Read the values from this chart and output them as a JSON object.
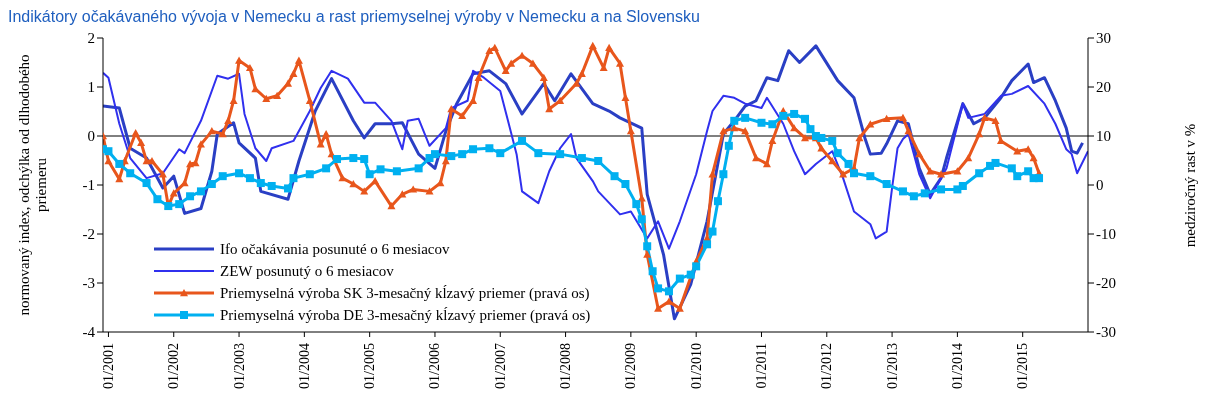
{
  "chart_data": {
    "type": "line",
    "title": "Indikátory očakávaného vývoja v Nemecku a rast priemyselnej výroby v Nemecku a na Slovensku",
    "ylabel": "normovaný index, odchýlka od dlhodobého priemeru",
    "y2label": "medziročný rast v %",
    "xlim": [
      "2000-12",
      "2016-01"
    ],
    "xticks": [
      {
        "value": "2001-01",
        "label": "01/2001"
      },
      {
        "value": "2002-01",
        "label": "01/2002"
      },
      {
        "value": "2003-01",
        "label": "01/2003"
      },
      {
        "value": "2004-01",
        "label": "01/2004"
      },
      {
        "value": "2005-01",
        "label": "01/2005"
      },
      {
        "value": "2006-01",
        "label": "01/2006"
      },
      {
        "value": "2007-01",
        "label": "01/2007"
      },
      {
        "value": "2008-01",
        "label": "01/2008"
      },
      {
        "value": "2009-01",
        "label": "01/2009"
      },
      {
        "value": "2010-01",
        "label": "01/2010"
      },
      {
        "value": "2011-01",
        "label": "01/2011"
      },
      {
        "value": "2012-01",
        "label": "01/2012"
      },
      {
        "value": "2013-01",
        "label": "01/2013"
      },
      {
        "value": "2014-01",
        "label": "01/2014"
      },
      {
        "value": "2015-01",
        "label": "01/2015"
      }
    ],
    "ylim": [
      -4,
      2
    ],
    "yticks": [
      -4,
      -3,
      -2,
      -1,
      0,
      1,
      2
    ],
    "y2lim": [
      -30,
      30
    ],
    "y2ticks": [
      -30,
      -20,
      -10,
      0,
      10,
      20,
      30
    ],
    "grid": false,
    "legend": "bottom left",
    "ref_lines": [
      {
        "axis": "y",
        "value": 0,
        "color": "#000000"
      }
    ],
    "series": [
      {
        "name": "Ifo očakávania posunuté o 6 mesiacov",
        "color": "#2a3fc4",
        "line_style": "solid",
        "marker": "none",
        "x": [
          "2000-12",
          "2001-03",
          "2001-05",
          "2001-08",
          "2001-11",
          "2002-01",
          "2002-03",
          "2002-06",
          "2002-08",
          "2002-09",
          "2002-12",
          "2003-01",
          "2003-04",
          "2003-05",
          "2003-10",
          "2003-12",
          "2004-03",
          "2004-06",
          "2004-10",
          "2004-12",
          "2005-02",
          "2005-05",
          "2005-07",
          "2005-10",
          "2006-01",
          "2006-03",
          "2006-05",
          "2006-08",
          "2006-11",
          "2007-02",
          "2007-05",
          "2007-09",
          "2007-11",
          "2008-02",
          "2008-06",
          "2008-09",
          "2008-11",
          "2009-03",
          "2009-04",
          "2009-07",
          "2009-09",
          "2009-12",
          "2010-03",
          "2010-06",
          "2010-08",
          "2010-10",
          "2010-12",
          "2011-02",
          "2011-04",
          "2011-06",
          "2011-08",
          "2011-11",
          "2012-03",
          "2012-06",
          "2012-08",
          "2012-09",
          "2012-11",
          "2012-12",
          "2013-02",
          "2013-04",
          "2013-06",
          "2013-08",
          "2013-10",
          "2013-11",
          "2014-02",
          "2014-04",
          "2014-06",
          "2014-09",
          "2014-11",
          "2015-02",
          "2015-03",
          "2015-05",
          "2015-07",
          "2015-09",
          "2015-10",
          "2015-11",
          "2015-12"
        ],
        "values": [
          0.61,
          0.57,
          -0.25,
          -0.45,
          -1.06,
          -0.82,
          -1.58,
          -1.48,
          -0.72,
          0.04,
          0.27,
          -0.14,
          -0.45,
          -1.13,
          -1.29,
          -0.51,
          0.51,
          1.17,
          0.31,
          -0.04,
          0.25,
          0.25,
          0.27,
          -0.37,
          -0.66,
          0.1,
          0.66,
          1.27,
          1.33,
          1.07,
          0.45,
          1.07,
          0.72,
          1.27,
          0.66,
          0.51,
          0.37,
          0.16,
          -1.19,
          -2.42,
          -3.73,
          -3.03,
          -1.74,
          0.04,
          0.31,
          0.61,
          0.72,
          1.19,
          1.13,
          1.74,
          1.5,
          1.84,
          1.13,
          0.78,
          -0.04,
          -0.37,
          -0.35,
          -0.16,
          0.31,
          0.25,
          -0.66,
          -1.19,
          -0.86,
          -0.45,
          0.66,
          0.25,
          0.37,
          0.78,
          1.13,
          1.47,
          1.09,
          1.19,
          0.72,
          0.16,
          -0.31,
          -0.35,
          -0.14
        ]
      },
      {
        "name": "ZEW posunutý o 6 mesiacov",
        "color": "#3030ee",
        "line_style": "solid",
        "marker": "none",
        "x": [
          "2000-12",
          "2001-01",
          "2001-03",
          "2001-05",
          "2001-08",
          "2001-11",
          "2002-02",
          "2002-03",
          "2002-06",
          "2002-09",
          "2002-11",
          "2003-01",
          "2003-02",
          "2003-04",
          "2003-06",
          "2003-07",
          "2003-11",
          "2004-02",
          "2004-04",
          "2004-06",
          "2004-09",
          "2004-12",
          "2005-02",
          "2005-05",
          "2005-07",
          "2005-08",
          "2005-10",
          "2005-12",
          "2006-03",
          "2006-04",
          "2006-07",
          "2006-08",
          "2006-10",
          "2007-01",
          "2007-04",
          "2007-05",
          "2007-08",
          "2007-10",
          "2007-12",
          "2008-02",
          "2008-03",
          "2008-06",
          "2008-07",
          "2008-11",
          "2009-01",
          "2009-04",
          "2009-06",
          "2009-08",
          "2009-10",
          "2010-01",
          "2010-03",
          "2010-04",
          "2010-06",
          "2010-08",
          "2010-10",
          "2011-01",
          "2011-02",
          "2011-05",
          "2011-07",
          "2011-09",
          "2011-11",
          "2012-02",
          "2012-04",
          "2012-06",
          "2012-09",
          "2012-10",
          "2012-12",
          "2013-01",
          "2013-02",
          "2013-03",
          "2013-04",
          "2013-06",
          "2013-08",
          "2013-10",
          "2013-11",
          "2014-02",
          "2014-03",
          "2014-06",
          "2014-09",
          "2014-11",
          "2015-02",
          "2015-05",
          "2015-07",
          "2015-09",
          "2015-10",
          "2015-11",
          "2016-01"
        ],
        "values": [
          1.29,
          1.19,
          0.25,
          -0.45,
          -0.86,
          -0.76,
          -0.27,
          -0.35,
          0.31,
          1.23,
          1.17,
          1.27,
          0.45,
          -0.25,
          -0.51,
          -0.25,
          -0.1,
          0.51,
          0.98,
          1.33,
          1.17,
          0.68,
          0.68,
          0.31,
          -0.27,
          0.31,
          0.35,
          -0.2,
          0.16,
          0.57,
          0.72,
          1.33,
          1.19,
          0.92,
          -0.37,
          -1.13,
          -1.37,
          -0.72,
          -0.25,
          0.04,
          -0.45,
          -0.92,
          -1.13,
          -1.6,
          -1.54,
          -2.09,
          -1.74,
          -2.3,
          -1.74,
          -0.78,
          0.1,
          0.51,
          0.82,
          0.78,
          0.66,
          0.57,
          0.78,
          0.25,
          -0.31,
          -0.78,
          -0.57,
          -0.31,
          -0.86,
          -1.54,
          -1.8,
          -2.09,
          -1.95,
          -1.06,
          -0.25,
          -0.06,
          0.04,
          -0.78,
          -1.27,
          -0.86,
          -0.66,
          0.66,
          0.37,
          0.45,
          0.82,
          0.86,
          1.02,
          0.66,
          0.25,
          -0.27,
          -0.37,
          -0.76,
          -0.31
        ]
      },
      {
        "name": "Priemyselná výroba SK 3-mesačný kĺzavý priemer (pravá os)",
        "color": "#e8561c",
        "axis": "y2",
        "line_style": "solid",
        "marker": "triangle",
        "x": [
          "2000-12",
          "2001-01",
          "2001-03",
          "2001-04",
          "2001-06",
          "2001-07",
          "2001-08",
          "2001-09",
          "2001-11",
          "2001-12",
          "2002-01",
          "2002-03",
          "2002-04",
          "2002-05",
          "2002-06",
          "2002-08",
          "2002-10",
          "2002-11",
          "2002-12",
          "2003-01",
          "2003-03",
          "2003-04",
          "2003-06",
          "2003-08",
          "2003-10",
          "2003-11",
          "2003-12",
          "2004-02",
          "2004-04",
          "2004-05",
          "2004-06",
          "2004-08",
          "2004-10",
          "2004-12",
          "2005-02",
          "2005-05",
          "2005-07",
          "2005-09",
          "2005-12",
          "2006-02",
          "2006-03",
          "2006-04",
          "2006-06",
          "2006-08",
          "2006-09",
          "2006-11",
          "2006-12",
          "2007-02",
          "2007-03",
          "2007-05",
          "2007-07",
          "2007-09",
          "2007-10",
          "2007-12",
          "2008-03",
          "2008-04",
          "2008-06",
          "2008-08",
          "2008-09",
          "2008-11",
          "2008-12",
          "2009-01",
          "2009-03",
          "2009-04",
          "2009-06",
          "2009-08",
          "2009-10",
          "2010-01",
          "2010-03",
          "2010-04",
          "2010-06",
          "2010-08",
          "2010-10",
          "2010-12",
          "2011-02",
          "2011-03",
          "2011-05",
          "2011-07",
          "2011-09",
          "2011-11",
          "2011-12",
          "2012-02",
          "2012-04",
          "2012-06",
          "2012-07",
          "2012-09",
          "2012-12",
          "2013-03",
          "2013-04",
          "2013-06",
          "2013-08",
          "2013-10",
          "2014-01",
          "2014-03",
          "2014-05",
          "2014-06",
          "2014-08",
          "2014-09",
          "2014-12",
          "2015-02",
          "2015-03",
          "2015-04"
        ],
        "values": [
          10.0,
          4.9,
          1.2,
          4.9,
          10.6,
          8.6,
          4.9,
          4.9,
          2.2,
          -4.3,
          -1.7,
          0.4,
          4.3,
          4.5,
          8.3,
          11.0,
          10.4,
          13.1,
          17.2,
          25.4,
          23.9,
          19.6,
          17.6,
          18.2,
          20.7,
          22.7,
          25.4,
          17.2,
          8.3,
          10.4,
          6.3,
          1.4,
          0.2,
          -1.3,
          0.8,
          -4.3,
          -1.9,
          -0.9,
          -1.3,
          0.4,
          4.9,
          15.5,
          14.1,
          17.2,
          21.9,
          27.4,
          28.0,
          23.3,
          24.8,
          26.4,
          24.8,
          21.9,
          15.5,
          17.2,
          20.7,
          22.7,
          28.4,
          23.9,
          28.0,
          24.8,
          17.8,
          11.0,
          -2.7,
          -14.2,
          -25.2,
          -23.8,
          -25.2,
          -15.6,
          -10.9,
          2.2,
          11.0,
          11.6,
          11.0,
          5.5,
          4.3,
          9.0,
          15.1,
          11.6,
          9.6,
          9.6,
          7.5,
          4.9,
          2.2,
          3.4,
          9.6,
          12.4,
          13.5,
          13.7,
          11.0,
          6.3,
          2.8,
          2.2,
          2.8,
          5.5,
          10.4,
          13.7,
          13.1,
          9.0,
          6.9,
          7.3,
          5.5,
          2.4
        ]
      },
      {
        "name": "Priemyselná výroba DE 3-mesačný kĺzavý priemer (pravá os)",
        "color": "#00b0f0",
        "axis": "y2",
        "line_style": "solid",
        "marker": "square",
        "x": [
          "2000-12",
          "2001-01",
          "2001-03",
          "2001-05",
          "2001-08",
          "2001-10",
          "2001-12",
          "2002-02",
          "2002-04",
          "2002-06",
          "2002-08",
          "2002-10",
          "2003-01",
          "2003-03",
          "2003-05",
          "2003-07",
          "2003-10",
          "2003-11",
          "2004-02",
          "2004-05",
          "2004-07",
          "2004-10",
          "2004-12",
          "2005-01",
          "2005-03",
          "2005-06",
          "2005-10",
          "2005-12",
          "2006-01",
          "2006-04",
          "2006-06",
          "2006-08",
          "2006-11",
          "2007-01",
          "2007-05",
          "2007-08",
          "2007-12",
          "2008-04",
          "2008-07",
          "2008-10",
          "2008-12",
          "2009-02",
          "2009-03",
          "2009-04",
          "2009-05",
          "2009-06",
          "2009-08",
          "2009-10",
          "2009-12",
          "2010-01",
          "2010-03",
          "2010-04",
          "2010-05",
          "2010-06",
          "2010-07",
          "2010-08",
          "2010-10",
          "2011-01",
          "2011-03",
          "2011-05",
          "2011-07",
          "2011-09",
          "2011-10",
          "2011-11",
          "2011-12",
          "2012-02",
          "2012-03",
          "2012-05",
          "2012-06",
          "2012-09",
          "2012-12",
          "2013-03",
          "2013-05",
          "2013-07",
          "2013-10",
          "2014-01",
          "2014-02",
          "2014-05",
          "2014-07",
          "2014-08",
          "2014-11",
          "2014-12",
          "2015-02",
          "2015-03",
          "2015-04"
        ],
        "values": [
          7.3,
          6.9,
          4.3,
          2.4,
          0.4,
          -2.9,
          -4.3,
          -3.9,
          -2.3,
          -1.3,
          0.2,
          1.8,
          2.4,
          1.4,
          0.4,
          -0.2,
          -0.7,
          1.4,
          2.2,
          3.4,
          5.3,
          5.5,
          5.3,
          2.2,
          3.2,
          2.8,
          3.4,
          5.5,
          6.3,
          5.9,
          6.3,
          7.3,
          7.5,
          6.5,
          9.0,
          6.5,
          6.3,
          5.5,
          4.9,
          1.8,
          0.2,
          -3.9,
          -7.0,
          -12.5,
          -17.6,
          -21.1,
          -21.7,
          -19.1,
          -18.3,
          -16.6,
          -12.1,
          -9.5,
          -3.3,
          2.2,
          8.0,
          13.1,
          13.7,
          12.7,
          12.4,
          14.1,
          14.5,
          13.5,
          11.4,
          10.0,
          9.6,
          9.0,
          6.5,
          4.3,
          2.4,
          1.8,
          0.2,
          -1.3,
          -2.3,
          -1.7,
          -0.9,
          -0.9,
          -0.2,
          2.4,
          3.9,
          4.5,
          3.4,
          1.8,
          2.8,
          1.4,
          1.4
        ]
      }
    ]
  }
}
